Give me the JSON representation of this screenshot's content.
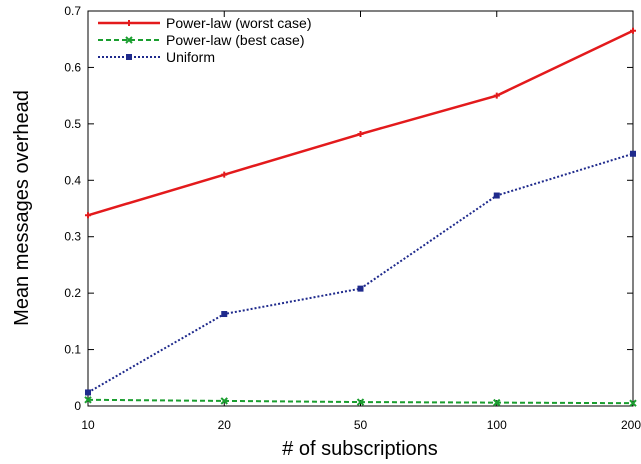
{
  "chart_data": {
    "type": "line",
    "xlabel": "# of subscriptions",
    "ylabel": "Mean messages overhead",
    "x": [
      10,
      20,
      50,
      100,
      200
    ],
    "x_tick_labels": [
      "10",
      "20",
      "50",
      "100",
      "200"
    ],
    "y_tick_labels": [
      "0",
      "0.1",
      "0.2",
      "0.3",
      "0.4",
      "0.5",
      "0.6",
      "0.7"
    ],
    "ylim": [
      0,
      0.7
    ],
    "x_scale": "categorical (evenly spaced)",
    "grid": false,
    "legend_position": "top-left",
    "series": [
      {
        "name": "Power-law (worst case)",
        "color": "#e31a1c",
        "line_style": "solid",
        "marker": "plus",
        "values": [
          0.338,
          0.41,
          0.482,
          0.55,
          0.665
        ]
      },
      {
        "name": "Power-law (best case)",
        "color": "#1a9e2f",
        "line_style": "dashed",
        "marker": "x",
        "values": [
          0.011,
          0.009,
          0.007,
          0.006,
          0.005
        ]
      },
      {
        "name": "Uniform",
        "color": "#1f2a8c",
        "line_style": "dotted",
        "marker": "square",
        "values": [
          0.024,
          0.163,
          0.208,
          0.373,
          0.447
        ]
      }
    ]
  }
}
